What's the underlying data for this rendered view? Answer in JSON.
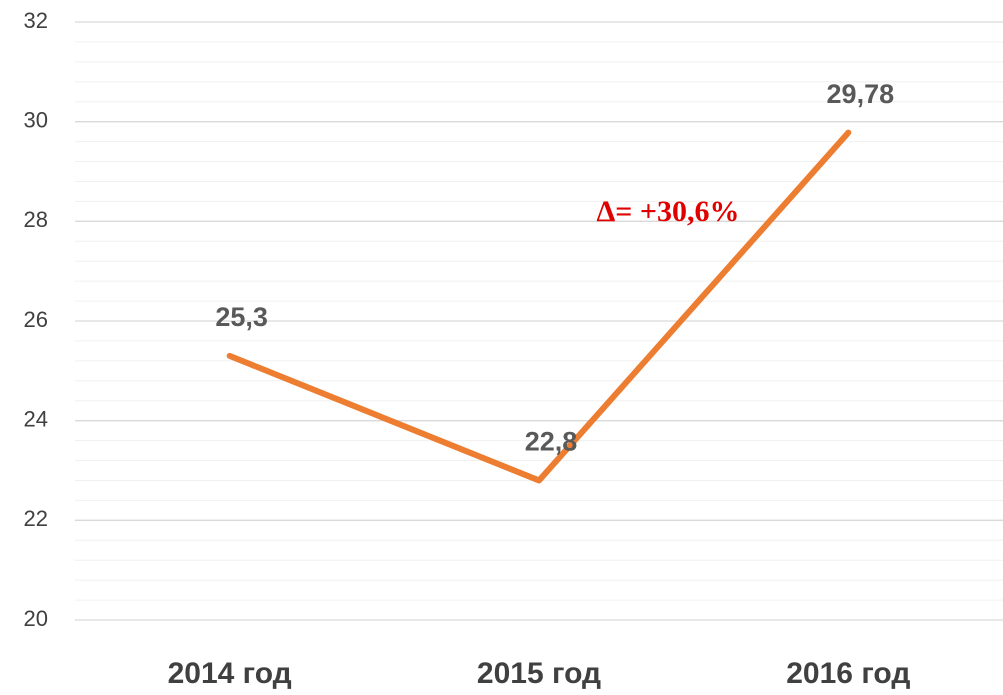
{
  "chart_data": {
    "type": "line",
    "categories": [
      "2014 год",
      "2015 год",
      "2016 год"
    ],
    "values": [
      25.3,
      22.8,
      29.78
    ],
    "value_labels": [
      "25,3",
      "22,8",
      "29,78"
    ],
    "color": "#ed7d31",
    "ylim": [
      20,
      32
    ],
    "yticks": [
      20,
      22,
      24,
      26,
      28,
      30,
      32
    ],
    "grid": true,
    "minor_grid": true,
    "annotations": [
      {
        "text": "Δ= +30,6%",
        "color": "#e00000"
      }
    ]
  }
}
